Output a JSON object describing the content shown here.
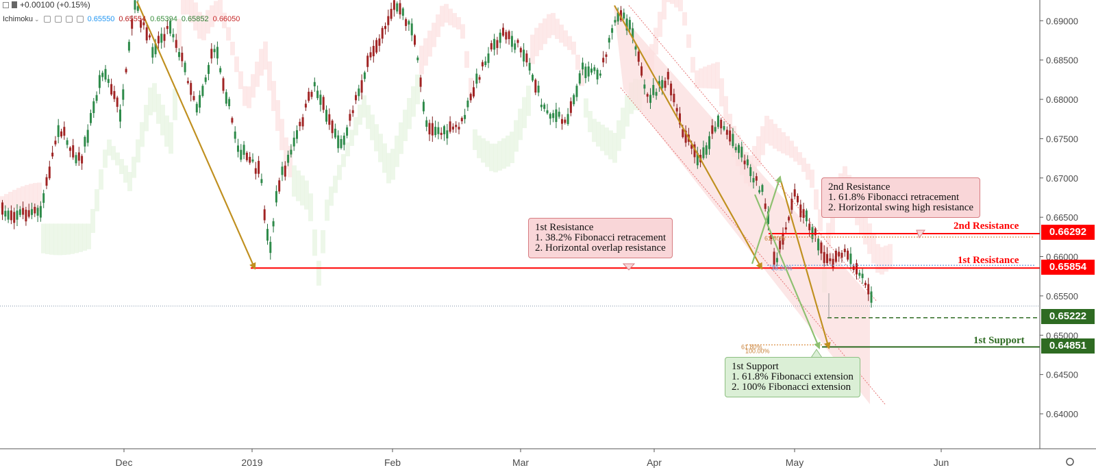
{
  "legend": {
    "change": "+0.00100 (+0.15%)",
    "indicator": "Ichimoku",
    "values": [
      {
        "text": "0.65550",
        "color": "#2196f3"
      },
      {
        "text": "0.65554",
        "color": "#b71c1c"
      },
      {
        "text": "0.65394",
        "color": "#388e3c"
      },
      {
        "text": "0.65852",
        "color": "#2e7d32"
      },
      {
        "text": "0.66050",
        "color": "#c62828"
      }
    ]
  },
  "chart_data": {
    "type": "candlestick",
    "title": "",
    "y_ticks": [
      0.64,
      0.645,
      0.65,
      0.655,
      0.66,
      0.665,
      0.67,
      0.675,
      0.68,
      0.685,
      0.69
    ],
    "y_tick_labels": [
      "0.64000",
      "0.64500",
      "0.65000",
      "0.65500",
      "0.66000",
      "0.66500",
      "0.67000",
      "0.67500",
      "0.68000",
      "0.68500",
      "0.69000"
    ],
    "ylim": [
      0.6377,
      0.692
    ],
    "x_labels": [
      "Dec",
      "2019",
      "Feb",
      "Mar",
      "Apr",
      "May",
      "Jun"
    ],
    "price_path": [
      [
        "2018-11-12",
        0.6655
      ],
      [
        "2018-11-16",
        0.6765
      ],
      [
        "2018-11-21",
        0.672
      ],
      [
        "2018-11-26",
        0.684
      ],
      [
        "2018-11-30",
        0.678
      ],
      [
        "2018-12-03",
        0.692
      ],
      [
        "2018-12-07",
        0.6865
      ],
      [
        "2018-12-11",
        0.6895
      ],
      [
        "2018-12-17",
        0.679
      ],
      [
        "2018-12-21",
        0.687
      ],
      [
        "2018-12-26",
        0.674
      ],
      [
        "2018-12-31",
        0.6705
      ],
      [
        "2019-01-02",
        0.6605
      ],
      [
        "2019-01-04",
        0.669
      ],
      [
        "2019-01-08",
        0.675
      ],
      [
        "2019-01-12",
        0.682
      ],
      [
        "2019-01-15",
        0.678
      ],
      [
        "2019-01-18",
        0.674
      ],
      [
        "2019-01-21",
        0.6795
      ],
      [
        "2019-01-25",
        0.686
      ],
      [
        "2019-01-30",
        0.692
      ],
      [
        "2019-02-03",
        0.689
      ],
      [
        "2019-02-06",
        0.677
      ],
      [
        "2019-02-10",
        0.6755
      ],
      [
        "2019-02-14",
        0.677
      ],
      [
        "2019-02-19",
        0.685
      ],
      [
        "2019-02-23",
        0.6885
      ],
      [
        "2019-02-28",
        0.686
      ],
      [
        "2019-03-04",
        0.679
      ],
      [
        "2019-03-09",
        0.677
      ],
      [
        "2019-03-13",
        0.684
      ],
      [
        "2019-03-17",
        0.6835
      ],
      [
        "2019-03-21",
        0.6915
      ],
      [
        "2019-03-24",
        0.689
      ],
      [
        "2019-03-27",
        0.68
      ],
      [
        "2019-04-01",
        0.6825
      ],
      [
        "2019-04-04",
        0.676
      ],
      [
        "2019-04-08",
        0.672
      ],
      [
        "2019-04-12",
        0.6775
      ],
      [
        "2019-04-17",
        0.6735
      ],
      [
        "2019-04-22",
        0.668
      ],
      [
        "2019-04-25",
        0.659
      ],
      [
        "2019-04-29",
        0.668
      ],
      [
        "2019-05-03",
        0.6635
      ],
      [
        "2019-05-07",
        0.659
      ],
      [
        "2019-05-10",
        0.6605
      ],
      [
        "2019-05-14",
        0.6575
      ],
      [
        "2019-05-16",
        0.656
      ],
      [
        "2019-05-17",
        0.653
      ]
    ],
    "levels": [
      {
        "name": "2nd Resistance",
        "price": 0.66292,
        "label": "0.66292",
        "color": "#ff0000"
      },
      {
        "name": "1st Resistance",
        "price": 0.65854,
        "label": "0.65854",
        "color": "#ff0000"
      },
      {
        "name": "",
        "price": 0.65222,
        "label": "0.65222",
        "color": "#2e6b22"
      },
      {
        "name": "1st Support",
        "price": 0.64851,
        "label": "0.64851",
        "color": "#2e6b22"
      }
    ],
    "current_price_line": 0.6537,
    "fib_labels": [
      "61.80%",
      "38.20%",
      "61.80%",
      "100.00%"
    ],
    "annotations": [
      {
        "lines": [
          "1st Resistance",
          "1. 38.2% Fibonacci retracement",
          "2. Horizontal overlap resistance"
        ]
      },
      {
        "lines": [
          "2nd Resistance",
          "1. 61.8% Fibonacci retracement",
          "2. Horizontal swing high resistance"
        ]
      },
      {
        "lines": [
          "1st Support",
          "1. 61.8% Fibonacci extension",
          "2. 100% Fibonacci extension"
        ]
      }
    ]
  }
}
